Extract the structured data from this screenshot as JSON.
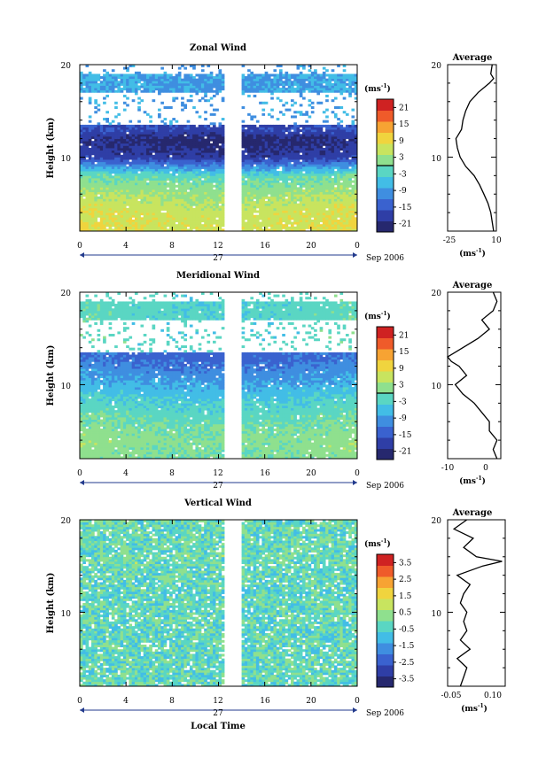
{
  "chart_data": [
    {
      "type": "heatmap",
      "title": "Zonal Wind",
      "ylabel": "Height (km)",
      "ylim": [
        2,
        20
      ],
      "yticks": [
        "20",
        "10"
      ],
      "xlim": [
        0,
        24
      ],
      "xticks": [
        "0",
        "4",
        "8",
        "12",
        "16",
        "20",
        "0"
      ],
      "date_day": "27",
      "date_label": "Sep 2006",
      "colorbar": {
        "unit": "(ms",
        "unit_exp": "-1",
        "ticks": [
          "21",
          "15",
          "9",
          "3",
          "-3",
          "-9",
          "-15",
          "-21"
        ],
        "range": [
          -24,
          24
        ],
        "contour_level": 0
      },
      "data_gap_hours": [
        12.6,
        13.9
      ],
      "height_profile_km": [
        2,
        4,
        6,
        8,
        10,
        12,
        13,
        14,
        16,
        18,
        20
      ],
      "field_ms": [
        9,
        8,
        5,
        0,
        -17,
        -20,
        -15,
        null,
        null,
        -7,
        null
      ],
      "average": {
        "title": "Average",
        "xlim": [
          -25,
          10
        ],
        "xticks": [
          "-25",
          "10"
        ],
        "xunit": "(ms",
        "xunit_exp": "-1",
        "ylim": [
          2,
          20
        ],
        "yticks": [
          "20",
          "10"
        ],
        "height_km": [
          2,
          3,
          4,
          5,
          6,
          7,
          8,
          9,
          10,
          11,
          12,
          12.5,
          13,
          14,
          15,
          16,
          17,
          18,
          18.5,
          19,
          20
        ],
        "values_ms": [
          8,
          7,
          6,
          4,
          1,
          -2,
          -6,
          -12,
          -16,
          -18,
          -19,
          -17,
          -15,
          -14,
          -12,
          -9,
          -3,
          5,
          8,
          6,
          7
        ]
      }
    },
    {
      "type": "heatmap",
      "title": "Meridional Wind",
      "ylabel": "Height (km)",
      "ylim": [
        2,
        20
      ],
      "yticks": [
        "20",
        "10"
      ],
      "xlim": [
        0,
        24
      ],
      "xticks": [
        "0",
        "4",
        "8",
        "12",
        "16",
        "20",
        "0"
      ],
      "date_day": "27",
      "date_label": "Sep 2006",
      "colorbar": {
        "unit": "(ms",
        "unit_exp": "-1",
        "ticks": [
          "21",
          "15",
          "9",
          "3",
          "-3",
          "-9",
          "-15",
          "-21"
        ],
        "range": [
          -24,
          24
        ],
        "contour_level": 0
      },
      "data_gap_hours": [
        12.6,
        13.9
      ],
      "height_profile_km": [
        2,
        4,
        6,
        8,
        10,
        12,
        13,
        14,
        16,
        18,
        20
      ],
      "field_ms": [
        2,
        3,
        1,
        -2,
        -6,
        -10,
        -12,
        null,
        null,
        -1,
        null
      ],
      "average": {
        "title": "Average",
        "xlim": [
          -10,
          4
        ],
        "xticks": [
          "-10",
          "0"
        ],
        "xunit": "(ms",
        "xunit_exp": "-1",
        "ylim": [
          2,
          20
        ],
        "yticks": [
          "20",
          "10"
        ],
        "height_km": [
          2,
          3,
          4,
          5,
          6,
          7,
          8,
          9,
          10,
          11,
          12,
          12.5,
          13,
          14,
          15,
          16,
          17,
          18,
          19,
          20
        ],
        "values_ms": [
          3,
          2,
          3,
          1,
          1,
          -1,
          -3,
          -6,
          -8,
          -5,
          -7,
          -9,
          -10,
          -6,
          -2,
          1,
          -1,
          2,
          3,
          2
        ]
      }
    },
    {
      "type": "heatmap",
      "title": "Vertical Wind",
      "ylabel": "Height (km)",
      "xlabel": "Local Time",
      "ylim": [
        2,
        20
      ],
      "yticks": [
        "20",
        "10"
      ],
      "xlim": [
        0,
        24
      ],
      "xticks": [
        "0",
        "4",
        "8",
        "12",
        "16",
        "20",
        "0"
      ],
      "date_day": "27",
      "date_label": "Sep 2006",
      "colorbar": {
        "unit": "(ms",
        "unit_exp": "-1",
        "ticks": [
          "3.5",
          "2.5",
          "1.5",
          "0.5",
          "-0.5",
          "-1.5",
          "-2.5",
          "-3.5"
        ],
        "range": [
          -4,
          4
        ]
      },
      "data_gap_hours": [
        12.6,
        13.9
      ],
      "height_profile_km": [
        2,
        4,
        6,
        8,
        10,
        12,
        14,
        16,
        18,
        20
      ],
      "field_ms": [
        -0.3,
        -0.2,
        -0.2,
        -0.3,
        -0.2,
        -0.3,
        -0.2,
        -0.1,
        -0.2,
        -0.2
      ],
      "average": {
        "title": "Average",
        "xlim": [
          -0.06,
          0.12
        ],
        "xticks": [
          "-0.05",
          "0.10"
        ],
        "xunit": "(ms",
        "xunit_exp": "-1",
        "ylim": [
          2,
          20
        ],
        "yticks": [
          "20",
          "10"
        ],
        "height_km": [
          2,
          3,
          4,
          5,
          6,
          7,
          8,
          9,
          10,
          11,
          12,
          13,
          14,
          15,
          15.5,
          16,
          17,
          18,
          19,
          20
        ],
        "values_ms": [
          -0.02,
          -0.01,
          0.0,
          -0.03,
          0.01,
          -0.02,
          0.0,
          -0.01,
          0.0,
          -0.02,
          -0.01,
          0.01,
          -0.03,
          0.05,
          0.11,
          0.03,
          -0.01,
          0.02,
          -0.04,
          0.0
        ]
      }
    }
  ]
}
